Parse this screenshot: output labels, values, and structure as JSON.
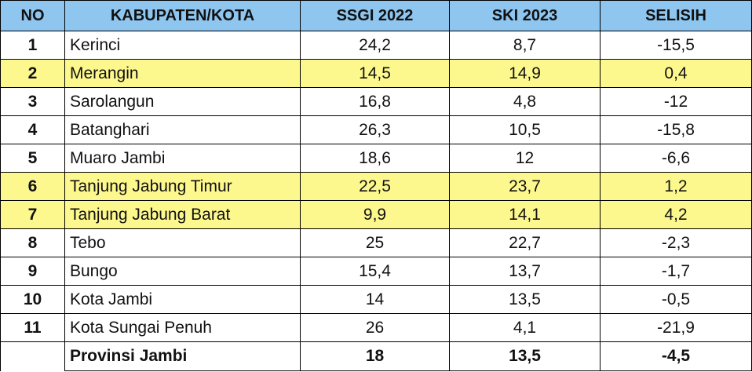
{
  "table": {
    "headers": [
      "NO",
      "KABUPATEN/KOTA",
      "SSGI 2022",
      "SKI 2023",
      "SELISIH"
    ],
    "rows": [
      {
        "no": "1",
        "name": "Kerinci",
        "ssgi": "24,2",
        "ski": "8,7",
        "selisih": "-15,5"
      },
      {
        "no": "2",
        "name": "Merangin",
        "ssgi": "14,5",
        "ski": "14,9",
        "selisih": "0,4"
      },
      {
        "no": "3",
        "name": "Sarolangun",
        "ssgi": "16,8",
        "ski": "4,8",
        "selisih": "-12"
      },
      {
        "no": "4",
        "name": "Batanghari",
        "ssgi": "26,3",
        "ski": "10,5",
        "selisih": "-15,8"
      },
      {
        "no": "5",
        "name": "Muaro Jambi",
        "ssgi": "18,6",
        "ski": "12",
        "selisih": "-6,6"
      },
      {
        "no": "6",
        "name": "Tanjung Jabung Timur",
        "ssgi": "22,5",
        "ski": "23,7",
        "selisih": "1,2"
      },
      {
        "no": "7",
        "name": "Tanjung Jabung Barat",
        "ssgi": "9,9",
        "ski": "14,1",
        "selisih": "4,2"
      },
      {
        "no": "8",
        "name": "Tebo",
        "ssgi": "25",
        "ski": "22,7",
        "selisih": "-2,3"
      },
      {
        "no": "9",
        "name": "Bungo",
        "ssgi": "15,4",
        "ski": "13,7",
        "selisih": "-1,7"
      },
      {
        "no": "10",
        "name": "Kota Jambi",
        "ssgi": "14",
        "ski": "13,5",
        "selisih": "-0,5"
      },
      {
        "no": "11",
        "name": "Kota Sungai Penuh",
        "ssgi": "26",
        "ski": "4,1",
        "selisih": "-21,9"
      }
    ],
    "total": {
      "no": "",
      "name": "Provinsi Jambi",
      "ssgi": "18",
      "ski": "13,5",
      "selisih": "-4,5"
    }
  },
  "colors": {
    "header_bg": "#8ec6f0",
    "highlight_bg": "#fdf88d",
    "border": "#000000"
  }
}
